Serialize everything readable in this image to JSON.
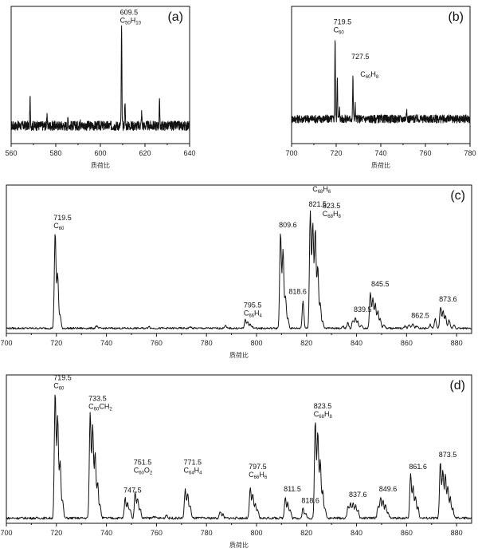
{
  "chart_data": [
    {
      "id": "a",
      "type": "line",
      "panel_label": "(a)",
      "xlabel": "质荷比",
      "xlim": [
        560,
        640
      ],
      "xticks": [
        560,
        580,
        600,
        620,
        640
      ],
      "ylim": [
        0,
        1
      ],
      "color": "#111111",
      "baseline": 0.13,
      "noise": 0.035,
      "peaks": [
        {
          "x": 568.5,
          "y": 0.33
        },
        {
          "x": 576.0,
          "y": 0.2
        },
        {
          "x": 585.5,
          "y": 0.18
        },
        {
          "x": 591.0,
          "y": 0.19
        },
        {
          "x": 609.5,
          "y": 0.85
        },
        {
          "x": 611.0,
          "y": 0.32
        },
        {
          "x": 618.5,
          "y": 0.22
        },
        {
          "x": 626.5,
          "y": 0.3
        }
      ],
      "annotations": [
        {
          "x": 609.5,
          "y": 0.87,
          "lines": [
            {
              "t": "609.5"
            },
            {
              "t": "C",
              "s": "50",
              "t2": "H",
              "s2": "10"
            }
          ]
        }
      ]
    },
    {
      "id": "b",
      "type": "line",
      "panel_label": "(b)",
      "xlabel": "质荷比",
      "xlim": [
        700,
        780
      ],
      "xticks": [
        700,
        720,
        740,
        760,
        780
      ],
      "ylim": [
        0,
        1
      ],
      "color": "#111111",
      "baseline": 0.18,
      "noise": 0.03,
      "peaks": [
        {
          "x": 719.5,
          "y": 0.78
        },
        {
          "x": 720.5,
          "y": 0.5
        },
        {
          "x": 721.5,
          "y": 0.25
        },
        {
          "x": 727.5,
          "y": 0.48
        },
        {
          "x": 728.5,
          "y": 0.28
        },
        {
          "x": 751.5,
          "y": 0.25
        }
      ],
      "annotations": [
        {
          "x": 719.5,
          "y": 0.8,
          "lines": [
            {
              "t": "719.5"
            },
            {
              "t": "C",
              "s": "60"
            }
          ]
        },
        {
          "x": 727.5,
          "y": 0.6,
          "lines": [
            {
              "t": "727.5"
            }
          ]
        },
        {
          "x": 731.5,
          "y": 0.47,
          "lines": [
            {
              "t": "C",
              "s": "60",
              "t2": "H",
              "s2": "8"
            }
          ]
        }
      ]
    },
    {
      "id": "c",
      "type": "line",
      "panel_label": "(c)",
      "xlabel": "质荷比",
      "xlim": [
        700,
        886
      ],
      "xticks": [
        700,
        720,
        740,
        760,
        780,
        800,
        820,
        840,
        860,
        880
      ],
      "ylim": [
        0,
        1
      ],
      "color": "#111111",
      "baseline": 0.035,
      "noise": 0.006,
      "peaks": [
        {
          "x": 719.5,
          "y": 0.68
        },
        {
          "x": 720.5,
          "y": 0.4
        },
        {
          "x": 721.5,
          "y": 0.12
        },
        {
          "x": 736.0,
          "y": 0.05
        },
        {
          "x": 757.0,
          "y": 0.05
        },
        {
          "x": 773.5,
          "y": 0.045
        },
        {
          "x": 787.5,
          "y": 0.055
        },
        {
          "x": 795.5,
          "y": 0.09
        },
        {
          "x": 796.5,
          "y": 0.08
        },
        {
          "x": 797.5,
          "y": 0.06
        },
        {
          "x": 798.5,
          "y": 0.045
        },
        {
          "x": 809.6,
          "y": 0.68
        },
        {
          "x": 810.6,
          "y": 0.56
        },
        {
          "x": 811.6,
          "y": 0.25
        },
        {
          "x": 812.6,
          "y": 0.1
        },
        {
          "x": 818.6,
          "y": 0.22
        },
        {
          "x": 821.5,
          "y": 0.82
        },
        {
          "x": 822.5,
          "y": 0.74
        },
        {
          "x": 823.5,
          "y": 0.7
        },
        {
          "x": 824.5,
          "y": 0.45
        },
        {
          "x": 825.5,
          "y": 0.2
        },
        {
          "x": 826.5,
          "y": 0.08
        },
        {
          "x": 834.5,
          "y": 0.05
        },
        {
          "x": 836.5,
          "y": 0.07
        },
        {
          "x": 838.5,
          "y": 0.09
        },
        {
          "x": 839.5,
          "y": 0.11
        },
        {
          "x": 840.5,
          "y": 0.08
        },
        {
          "x": 842.0,
          "y": 0.06
        },
        {
          "x": 845.5,
          "y": 0.28
        },
        {
          "x": 846.5,
          "y": 0.24
        },
        {
          "x": 847.5,
          "y": 0.2
        },
        {
          "x": 848.5,
          "y": 0.15
        },
        {
          "x": 849.5,
          "y": 0.1
        },
        {
          "x": 851.0,
          "y": 0.06
        },
        {
          "x": 859.5,
          "y": 0.05
        },
        {
          "x": 861.0,
          "y": 0.06
        },
        {
          "x": 862.5,
          "y": 0.07
        },
        {
          "x": 864.0,
          "y": 0.05
        },
        {
          "x": 869.5,
          "y": 0.06
        },
        {
          "x": 871.5,
          "y": 0.1
        },
        {
          "x": 873.6,
          "y": 0.18
        },
        {
          "x": 874.6,
          "y": 0.15
        },
        {
          "x": 875.6,
          "y": 0.12
        },
        {
          "x": 877.0,
          "y": 0.09
        },
        {
          "x": 879.0,
          "y": 0.06
        }
      ],
      "annotations": [
        {
          "x": 719.5,
          "y": 0.7,
          "lines": [
            {
              "t": "719.5"
            },
            {
              "t": "C",
              "s": "60"
            }
          ]
        },
        {
          "x": 795.5,
          "y": 0.11,
          "lines": [
            {
              "t": "795.5"
            },
            {
              "t": "C",
              "s": "66",
              "t2": "H",
              "s2": "4"
            }
          ]
        },
        {
          "x": 809.6,
          "y": 0.7,
          "lines": [
            {
              "t": "809.6"
            }
          ]
        },
        {
          "x": 823.0,
          "y": 0.94,
          "lines": [
            {
              "t": "C",
              "s": "68",
              "t2": "H",
              "s2": "6"
            }
          ]
        },
        {
          "x": 821.5,
          "y": 0.84,
          "lines": [
            {
              "t": "821.5"
            }
          ]
        },
        {
          "x": 827.0,
          "y": 0.78,
          "lines": [
            {
              "t": "823.5"
            },
            {
              "t": "C",
              "s": "68",
              "t2": "H",
              "s2": "8"
            }
          ]
        },
        {
          "x": 813.5,
          "y": 0.25,
          "lines": [
            {
              "t": "818.6"
            }
          ]
        },
        {
          "x": 839.5,
          "y": 0.13,
          "lines": [
            {
              "t": "839.5"
            }
          ]
        },
        {
          "x": 846.5,
          "y": 0.3,
          "lines": [
            {
              "t": "845.5"
            }
          ]
        },
        {
          "x": 862.5,
          "y": 0.09,
          "lines": [
            {
              "t": "862.5"
            }
          ]
        },
        {
          "x": 873.6,
          "y": 0.2,
          "lines": [
            {
              "t": "873.6"
            }
          ]
        }
      ]
    },
    {
      "id": "d",
      "type": "line",
      "panel_label": "(d)",
      "xlabel": "质荷比",
      "xlim": [
        700,
        886
      ],
      "xticks": [
        700,
        720,
        740,
        760,
        780,
        800,
        820,
        840,
        860,
        880
      ],
      "ylim": [
        0,
        1
      ],
      "color": "#111111",
      "baseline": 0.035,
      "noise": 0.008,
      "peaks": [
        {
          "x": 719.5,
          "y": 0.88
        },
        {
          "x": 720.5,
          "y": 0.72
        },
        {
          "x": 721.5,
          "y": 0.42
        },
        {
          "x": 722.5,
          "y": 0.15
        },
        {
          "x": 733.5,
          "y": 0.74
        },
        {
          "x": 734.5,
          "y": 0.66
        },
        {
          "x": 735.5,
          "y": 0.48
        },
        {
          "x": 736.5,
          "y": 0.28
        },
        {
          "x": 737.5,
          "y": 0.12
        },
        {
          "x": 747.5,
          "y": 0.17
        },
        {
          "x": 748.5,
          "y": 0.14
        },
        {
          "x": 749.5,
          "y": 0.1
        },
        {
          "x": 751.5,
          "y": 0.21
        },
        {
          "x": 752.5,
          "y": 0.17
        },
        {
          "x": 753.5,
          "y": 0.1
        },
        {
          "x": 759.0,
          "y": 0.05
        },
        {
          "x": 764.0,
          "y": 0.06
        },
        {
          "x": 771.5,
          "y": 0.23
        },
        {
          "x": 772.5,
          "y": 0.2
        },
        {
          "x": 773.5,
          "y": 0.12
        },
        {
          "x": 785.5,
          "y": 0.08
        },
        {
          "x": 786.5,
          "y": 0.06
        },
        {
          "x": 797.5,
          "y": 0.24
        },
        {
          "x": 798.5,
          "y": 0.2
        },
        {
          "x": 799.5,
          "y": 0.13
        },
        {
          "x": 800.5,
          "y": 0.09
        },
        {
          "x": 811.5,
          "y": 0.18
        },
        {
          "x": 812.5,
          "y": 0.14
        },
        {
          "x": 813.5,
          "y": 0.09
        },
        {
          "x": 818.6,
          "y": 0.1
        },
        {
          "x": 819.6,
          "y": 0.07
        },
        {
          "x": 823.5,
          "y": 0.69
        },
        {
          "x": 824.5,
          "y": 0.62
        },
        {
          "x": 825.5,
          "y": 0.42
        },
        {
          "x": 826.5,
          "y": 0.22
        },
        {
          "x": 827.5,
          "y": 0.1
        },
        {
          "x": 836.6,
          "y": 0.12
        },
        {
          "x": 837.6,
          "y": 0.14
        },
        {
          "x": 838.6,
          "y": 0.14
        },
        {
          "x": 839.6,
          "y": 0.12
        },
        {
          "x": 840.6,
          "y": 0.09
        },
        {
          "x": 848.6,
          "y": 0.12
        },
        {
          "x": 849.6,
          "y": 0.18
        },
        {
          "x": 850.6,
          "y": 0.15
        },
        {
          "x": 851.6,
          "y": 0.12
        },
        {
          "x": 852.6,
          "y": 0.08
        },
        {
          "x": 861.6,
          "y": 0.33
        },
        {
          "x": 862.6,
          "y": 0.25
        },
        {
          "x": 863.6,
          "y": 0.18
        },
        {
          "x": 864.6,
          "y": 0.11
        },
        {
          "x": 873.5,
          "y": 0.41
        },
        {
          "x": 874.5,
          "y": 0.35
        },
        {
          "x": 875.5,
          "y": 0.33
        },
        {
          "x": 876.5,
          "y": 0.25
        },
        {
          "x": 877.5,
          "y": 0.17
        },
        {
          "x": 878.5,
          "y": 0.1
        }
      ],
      "annotations": [
        {
          "x": 719.5,
          "y": 0.9,
          "lines": [
            {
              "t": "719.5"
            },
            {
              "t": "C",
              "s": "60"
            }
          ]
        },
        {
          "x": 733.5,
          "y": 0.76,
          "lines": [
            {
              "t": "733.5"
            },
            {
              "t": "C",
              "s": "60",
              "t2": "CH",
              "s2": "2"
            }
          ]
        },
        {
          "x": 747.5,
          "y": 0.19,
          "lines": [
            {
              "t": "747.5"
            }
          ]
        },
        {
          "x": 751.5,
          "y": 0.33,
          "lines": [
            {
              "t": "751.5"
            },
            {
              "t": "C",
              "s": "60",
              "t2": "O",
              "s2": "2"
            }
          ]
        },
        {
          "x": 771.5,
          "y": 0.33,
          "lines": [
            {
              "t": "771.5"
            },
            {
              "t": "C",
              "s": "64",
              "t2": "H",
              "s2": "4"
            }
          ]
        },
        {
          "x": 797.5,
          "y": 0.3,
          "lines": [
            {
              "t": "797.5"
            },
            {
              "t": "C",
              "s": "66",
              "t2": "H",
              "s2": "6"
            }
          ]
        },
        {
          "x": 811.5,
          "y": 0.2,
          "lines": [
            {
              "t": "811.5"
            }
          ]
        },
        {
          "x": 818.6,
          "y": 0.12,
          "lines": [
            {
              "t": "818.6"
            }
          ]
        },
        {
          "x": 823.5,
          "y": 0.71,
          "lines": [
            {
              "t": "823.5"
            },
            {
              "t": "C",
              "s": "68",
              "t2": "H",
              "s2": "8"
            }
          ]
        },
        {
          "x": 837.6,
          "y": 0.16,
          "lines": [
            {
              "t": "837.6"
            }
          ]
        },
        {
          "x": 849.6,
          "y": 0.2,
          "lines": [
            {
              "t": "849.6"
            }
          ]
        },
        {
          "x": 861.6,
          "y": 0.35,
          "lines": [
            {
              "t": "861.6"
            }
          ]
        },
        {
          "x": 873.5,
          "y": 0.43,
          "lines": [
            {
              "t": "873.5"
            }
          ]
        }
      ]
    }
  ]
}
